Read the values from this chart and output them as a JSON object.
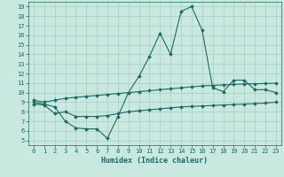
{
  "title": "",
  "xlabel": "Humidex (Indice chaleur)",
  "ylabel": "",
  "background_color": "#c8e8e0",
  "grid_color": "#a8ccc8",
  "line_color": "#1a6b60",
  "xlim": [
    -0.5,
    23.5
  ],
  "ylim": [
    4.5,
    19.5
  ],
  "x_ticks": [
    0,
    1,
    2,
    3,
    4,
    5,
    6,
    7,
    8,
    9,
    10,
    11,
    12,
    13,
    14,
    15,
    16,
    17,
    18,
    19,
    20,
    21,
    22,
    23
  ],
  "y_ticks": [
    5,
    6,
    7,
    8,
    9,
    10,
    11,
    12,
    13,
    14,
    15,
    16,
    17,
    18,
    19
  ],
  "line1_x": [
    0,
    1,
    2,
    3,
    4,
    5,
    6,
    7,
    8,
    9,
    10,
    11,
    12,
    13,
    14,
    15,
    16,
    17,
    18,
    19,
    20,
    21,
    22,
    23
  ],
  "line1_y": [
    9.0,
    8.8,
    8.5,
    7.0,
    6.3,
    6.2,
    6.2,
    5.2,
    7.5,
    10.0,
    11.7,
    13.8,
    16.2,
    14.0,
    18.5,
    19.0,
    16.5,
    10.5,
    10.1,
    11.3,
    11.3,
    10.3,
    10.3,
    10.0
  ],
  "line2_x": [
    0,
    1,
    2,
    3,
    4,
    5,
    6,
    7,
    8,
    9,
    10,
    11,
    12,
    13,
    14,
    15,
    16,
    17,
    18,
    19,
    20,
    21,
    22,
    23
  ],
  "line2_y": [
    9.2,
    9.0,
    9.2,
    9.4,
    9.5,
    9.6,
    9.7,
    9.8,
    9.9,
    10.0,
    10.1,
    10.2,
    10.3,
    10.4,
    10.5,
    10.6,
    10.7,
    10.75,
    10.8,
    10.85,
    10.9,
    10.92,
    10.95,
    10.97
  ],
  "line3_x": [
    0,
    1,
    2,
    3,
    4,
    5,
    6,
    7,
    8,
    9,
    10,
    11,
    12,
    13,
    14,
    15,
    16,
    17,
    18,
    19,
    20,
    21,
    22,
    23
  ],
  "line3_y": [
    8.8,
    8.7,
    7.8,
    8.0,
    7.5,
    7.5,
    7.5,
    7.6,
    7.8,
    8.0,
    8.1,
    8.2,
    8.3,
    8.4,
    8.5,
    8.55,
    8.6,
    8.65,
    8.7,
    8.75,
    8.8,
    8.85,
    8.9,
    9.0
  ],
  "marker": "D",
  "markersize": 2.0,
  "linewidth": 0.8,
  "tick_fontsize": 5.0,
  "xlabel_fontsize": 6.0
}
